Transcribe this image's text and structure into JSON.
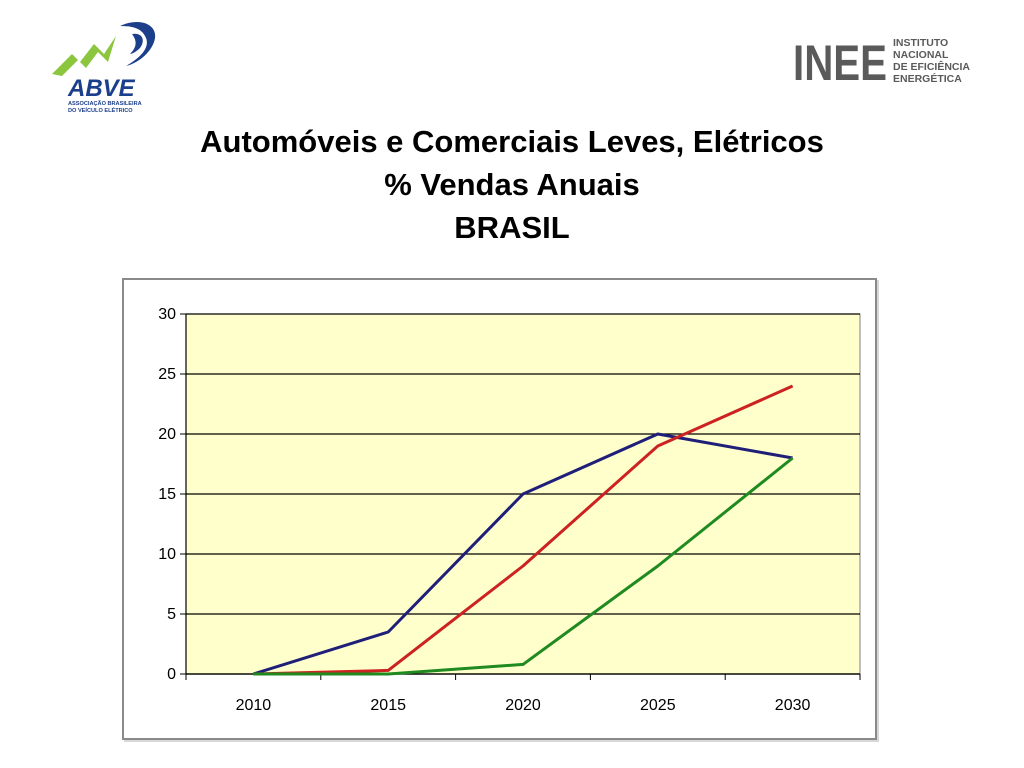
{
  "logos": {
    "left": {
      "name": "ABVE",
      "subtitle_1": "ASSOCIAÇÃO BRASILEIRA",
      "subtitle_2": "DO VEÍCULO ELÉTRICO"
    },
    "right": {
      "name": "INEE",
      "line_1": "INSTITUTO",
      "line_2": "NACIONAL",
      "line_3": "DE EFICIÊNCIA",
      "line_4": "ENERGÉTICA"
    }
  },
  "title": {
    "line_1": "Automóveis e Comerciais Leves, Elétricos",
    "line_2": "% Vendas Anuais",
    "line_3": "BRASIL"
  },
  "colors": {
    "plot_background": "#ffffcc",
    "series_blue": "#1f1f7a",
    "series_red": "#cc2222",
    "series_green": "#1f8a1f",
    "abve_green": "#8cc63f",
    "abve_blue": "#1b3f8b",
    "inee_gray": "#5a5a5a"
  },
  "chart_data": {
    "type": "line",
    "categories": [
      "2010",
      "2015",
      "2020",
      "2025",
      "2030"
    ],
    "x": [
      2010,
      2015,
      2020,
      2025,
      2030
    ],
    "ylim": [
      0,
      30
    ],
    "yticks": [
      "0",
      "5",
      "10",
      "15",
      "20",
      "25",
      "30"
    ],
    "grid": true,
    "legend": "none",
    "title": "",
    "xlabel": "",
    "ylabel": "",
    "series": [
      {
        "color": "#1f1f7a",
        "values": [
          0,
          3.5,
          15,
          20,
          18
        ]
      },
      {
        "color": "#cc2222",
        "values": [
          0,
          0.3,
          9,
          19,
          24
        ]
      },
      {
        "color": "#1f8a1f",
        "values": [
          0,
          0,
          0.8,
          9,
          18
        ]
      }
    ]
  }
}
